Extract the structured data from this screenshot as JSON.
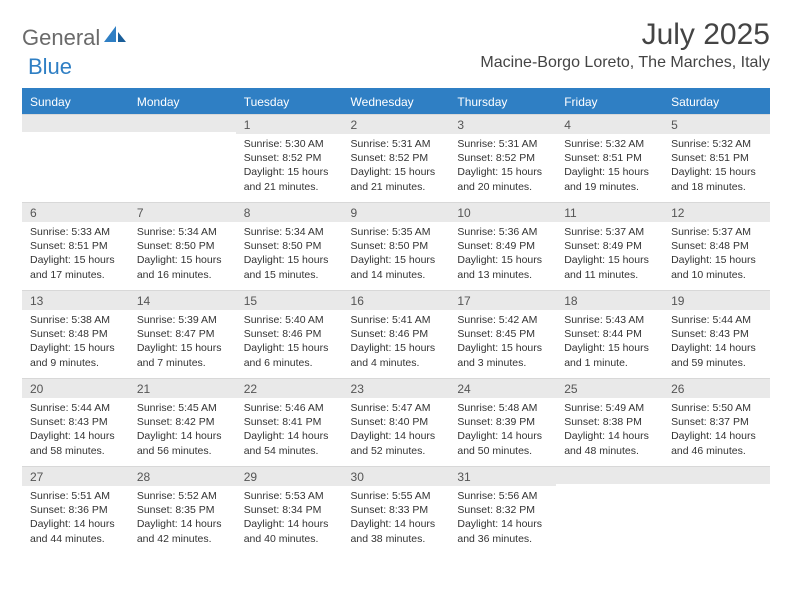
{
  "brand": {
    "part1": "General",
    "part2": "Blue"
  },
  "title": "July 2025",
  "location": "Macine-Borgo Loreto, The Marches, Italy",
  "colors": {
    "header_bg": "#2f7fc4",
    "header_text": "#ffffff",
    "daynum_bg": "#e9e9e9",
    "body_text": "#333333",
    "logo_gray": "#6a6a6a",
    "logo_blue": "#2f7fc4"
  },
  "day_headers": [
    "Sunday",
    "Monday",
    "Tuesday",
    "Wednesday",
    "Thursday",
    "Friday",
    "Saturday"
  ],
  "weeks": [
    [
      {
        "n": "",
        "sr": "",
        "ss": "",
        "dl": ""
      },
      {
        "n": "",
        "sr": "",
        "ss": "",
        "dl": ""
      },
      {
        "n": "1",
        "sr": "Sunrise: 5:30 AM",
        "ss": "Sunset: 8:52 PM",
        "dl": "Daylight: 15 hours and 21 minutes."
      },
      {
        "n": "2",
        "sr": "Sunrise: 5:31 AM",
        "ss": "Sunset: 8:52 PM",
        "dl": "Daylight: 15 hours and 21 minutes."
      },
      {
        "n": "3",
        "sr": "Sunrise: 5:31 AM",
        "ss": "Sunset: 8:52 PM",
        "dl": "Daylight: 15 hours and 20 minutes."
      },
      {
        "n": "4",
        "sr": "Sunrise: 5:32 AM",
        "ss": "Sunset: 8:51 PM",
        "dl": "Daylight: 15 hours and 19 minutes."
      },
      {
        "n": "5",
        "sr": "Sunrise: 5:32 AM",
        "ss": "Sunset: 8:51 PM",
        "dl": "Daylight: 15 hours and 18 minutes."
      }
    ],
    [
      {
        "n": "6",
        "sr": "Sunrise: 5:33 AM",
        "ss": "Sunset: 8:51 PM",
        "dl": "Daylight: 15 hours and 17 minutes."
      },
      {
        "n": "7",
        "sr": "Sunrise: 5:34 AM",
        "ss": "Sunset: 8:50 PM",
        "dl": "Daylight: 15 hours and 16 minutes."
      },
      {
        "n": "8",
        "sr": "Sunrise: 5:34 AM",
        "ss": "Sunset: 8:50 PM",
        "dl": "Daylight: 15 hours and 15 minutes."
      },
      {
        "n": "9",
        "sr": "Sunrise: 5:35 AM",
        "ss": "Sunset: 8:50 PM",
        "dl": "Daylight: 15 hours and 14 minutes."
      },
      {
        "n": "10",
        "sr": "Sunrise: 5:36 AM",
        "ss": "Sunset: 8:49 PM",
        "dl": "Daylight: 15 hours and 13 minutes."
      },
      {
        "n": "11",
        "sr": "Sunrise: 5:37 AM",
        "ss": "Sunset: 8:49 PM",
        "dl": "Daylight: 15 hours and 11 minutes."
      },
      {
        "n": "12",
        "sr": "Sunrise: 5:37 AM",
        "ss": "Sunset: 8:48 PM",
        "dl": "Daylight: 15 hours and 10 minutes."
      }
    ],
    [
      {
        "n": "13",
        "sr": "Sunrise: 5:38 AM",
        "ss": "Sunset: 8:48 PM",
        "dl": "Daylight: 15 hours and 9 minutes."
      },
      {
        "n": "14",
        "sr": "Sunrise: 5:39 AM",
        "ss": "Sunset: 8:47 PM",
        "dl": "Daylight: 15 hours and 7 minutes."
      },
      {
        "n": "15",
        "sr": "Sunrise: 5:40 AM",
        "ss": "Sunset: 8:46 PM",
        "dl": "Daylight: 15 hours and 6 minutes."
      },
      {
        "n": "16",
        "sr": "Sunrise: 5:41 AM",
        "ss": "Sunset: 8:46 PM",
        "dl": "Daylight: 15 hours and 4 minutes."
      },
      {
        "n": "17",
        "sr": "Sunrise: 5:42 AM",
        "ss": "Sunset: 8:45 PM",
        "dl": "Daylight: 15 hours and 3 minutes."
      },
      {
        "n": "18",
        "sr": "Sunrise: 5:43 AM",
        "ss": "Sunset: 8:44 PM",
        "dl": "Daylight: 15 hours and 1 minute."
      },
      {
        "n": "19",
        "sr": "Sunrise: 5:44 AM",
        "ss": "Sunset: 8:43 PM",
        "dl": "Daylight: 14 hours and 59 minutes."
      }
    ],
    [
      {
        "n": "20",
        "sr": "Sunrise: 5:44 AM",
        "ss": "Sunset: 8:43 PM",
        "dl": "Daylight: 14 hours and 58 minutes."
      },
      {
        "n": "21",
        "sr": "Sunrise: 5:45 AM",
        "ss": "Sunset: 8:42 PM",
        "dl": "Daylight: 14 hours and 56 minutes."
      },
      {
        "n": "22",
        "sr": "Sunrise: 5:46 AM",
        "ss": "Sunset: 8:41 PM",
        "dl": "Daylight: 14 hours and 54 minutes."
      },
      {
        "n": "23",
        "sr": "Sunrise: 5:47 AM",
        "ss": "Sunset: 8:40 PM",
        "dl": "Daylight: 14 hours and 52 minutes."
      },
      {
        "n": "24",
        "sr": "Sunrise: 5:48 AM",
        "ss": "Sunset: 8:39 PM",
        "dl": "Daylight: 14 hours and 50 minutes."
      },
      {
        "n": "25",
        "sr": "Sunrise: 5:49 AM",
        "ss": "Sunset: 8:38 PM",
        "dl": "Daylight: 14 hours and 48 minutes."
      },
      {
        "n": "26",
        "sr": "Sunrise: 5:50 AM",
        "ss": "Sunset: 8:37 PM",
        "dl": "Daylight: 14 hours and 46 minutes."
      }
    ],
    [
      {
        "n": "27",
        "sr": "Sunrise: 5:51 AM",
        "ss": "Sunset: 8:36 PM",
        "dl": "Daylight: 14 hours and 44 minutes."
      },
      {
        "n": "28",
        "sr": "Sunrise: 5:52 AM",
        "ss": "Sunset: 8:35 PM",
        "dl": "Daylight: 14 hours and 42 minutes."
      },
      {
        "n": "29",
        "sr": "Sunrise: 5:53 AM",
        "ss": "Sunset: 8:34 PM",
        "dl": "Daylight: 14 hours and 40 minutes."
      },
      {
        "n": "30",
        "sr": "Sunrise: 5:55 AM",
        "ss": "Sunset: 8:33 PM",
        "dl": "Daylight: 14 hours and 38 minutes."
      },
      {
        "n": "31",
        "sr": "Sunrise: 5:56 AM",
        "ss": "Sunset: 8:32 PM",
        "dl": "Daylight: 14 hours and 36 minutes."
      },
      {
        "n": "",
        "sr": "",
        "ss": "",
        "dl": ""
      },
      {
        "n": "",
        "sr": "",
        "ss": "",
        "dl": ""
      }
    ]
  ]
}
